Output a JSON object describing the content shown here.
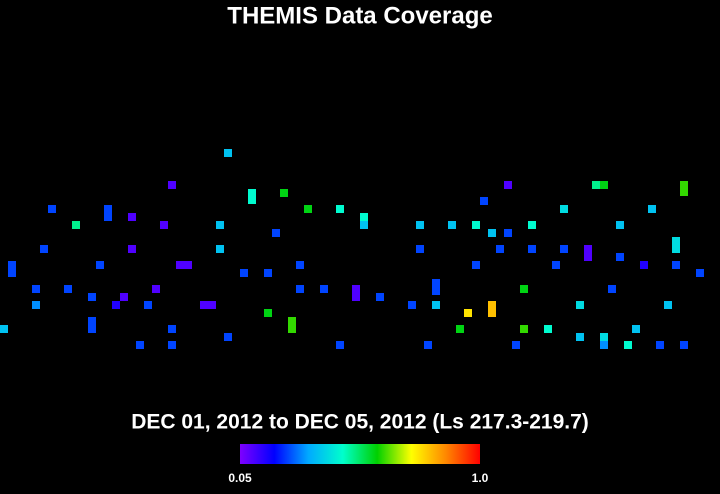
{
  "chart_data": {
    "type": "scatter",
    "title": "THEMIS Data Coverage",
    "subtitle": "DEC 01, 2012 to DEC 05, 2012 (Ls 217.3-219.7)",
    "xlim": [
      0,
      360
    ],
    "ylim": [
      -90,
      90
    ],
    "x": [
      114,
      86,
      126,
      126,
      142,
      254,
      298,
      302,
      342,
      342,
      26,
      54,
      54,
      66,
      154,
      170,
      182,
      182,
      242,
      282,
      326,
      38,
      82,
      110,
      138,
      210,
      226,
      238,
      266,
      310,
      246,
      254,
      338,
      338,
      22,
      66,
      110,
      210,
      250,
      266,
      282,
      294,
      294,
      310,
      6,
      6,
      50,
      90,
      94,
      122,
      134,
      150,
      238,
      278,
      322,
      338,
      350,
      18,
      34,
      78,
      150,
      162,
      178,
      178,
      218,
      218,
      262,
      306,
      46,
      62,
      190,
      18,
      58,
      74,
      102,
      106,
      206,
      218,
      290,
      334,
      234,
      246,
      246,
      134,
      146,
      146,
      46,
      46,
      2,
      86,
      230,
      262,
      274,
      318,
      114,
      290,
      302,
      70,
      86,
      170,
      214,
      258,
      302,
      314,
      330,
      342
    ],
    "y": [
      48,
      32,
      28,
      24.5,
      28,
      32,
      32,
      32,
      32,
      28.5,
      20,
      20,
      16,
      16,
      20,
      20,
      16,
      12,
      24,
      20,
      20,
      12,
      12,
      12,
      8,
      12,
      12,
      12,
      12,
      12,
      8,
      8,
      4,
      0,
      0,
      0,
      0,
      0,
      0,
      0,
      0,
      0,
      -4,
      -4,
      -8,
      -12,
      -8,
      -8,
      -8,
      -12,
      -12,
      -8,
      -8,
      -8,
      -8,
      -8,
      -12,
      -20,
      -20,
      -20,
      -20,
      -20,
      -20,
      -24,
      -17,
      -21,
      -20,
      -20,
      -24,
      -24,
      -24,
      -28,
      -28,
      -28,
      -28,
      -28,
      -28,
      -28,
      -28,
      -28,
      -32,
      -28,
      -32,
      -32,
      -36,
      -40,
      -36,
      -40,
      -40,
      -40,
      -40,
      -40,
      -40,
      -40,
      -44,
      -44,
      -44,
      -48,
      -48,
      -48,
      -48,
      -48,
      -48,
      -48,
      -48,
      -48
    ],
    "values": [
      0.36,
      0.1,
      0.45,
      0.45,
      0.58,
      0.1,
      0.5,
      0.58,
      0.62,
      0.62,
      0.24,
      0.24,
      0.24,
      0.1,
      0.58,
      0.45,
      0.45,
      0.36,
      0.24,
      0.4,
      0.36,
      0.5,
      0.1,
      0.36,
      0.24,
      0.36,
      0.36,
      0.45,
      0.45,
      0.36,
      0.36,
      0.24,
      0.4,
      0.4,
      0.24,
      0.1,
      0.36,
      0.24,
      0.24,
      0.24,
      0.24,
      0.1,
      0.1,
      0.24,
      0.24,
      0.24,
      0.24,
      0.1,
      0.1,
      0.24,
      0.24,
      0.24,
      0.24,
      0.24,
      0.15,
      0.24,
      0.24,
      0.24,
      0.24,
      0.1,
      0.24,
      0.24,
      0.1,
      0.1,
      0.24,
      0.24,
      0.58,
      0.24,
      0.24,
      0.1,
      0.24,
      0.3,
      0.15,
      0.24,
      0.1,
      0.1,
      0.24,
      0.36,
      0.4,
      0.36,
      0.76,
      0.8,
      0.8,
      0.58,
      0.62,
      0.62,
      0.24,
      0.24,
      0.36,
      0.24,
      0.58,
      0.62,
      0.45,
      0.36,
      0.24,
      0.36,
      0.4,
      0.24,
      0.24,
      0.24,
      0.24,
      0.24,
      0.3,
      0.45,
      0.24,
      0.24
    ],
    "clim": [
      0.05,
      1
    ],
    "cticks": [
      0.05,
      {
        "value": 1,
        "label": "1.0"
      }
    ],
    "colormap": [
      "#7f00ff",
      "#0000ff",
      "#00aaff",
      "#00ffcc",
      "#00d000",
      "#ffff00",
      "#ff8800",
      "#ff0000"
    ]
  }
}
